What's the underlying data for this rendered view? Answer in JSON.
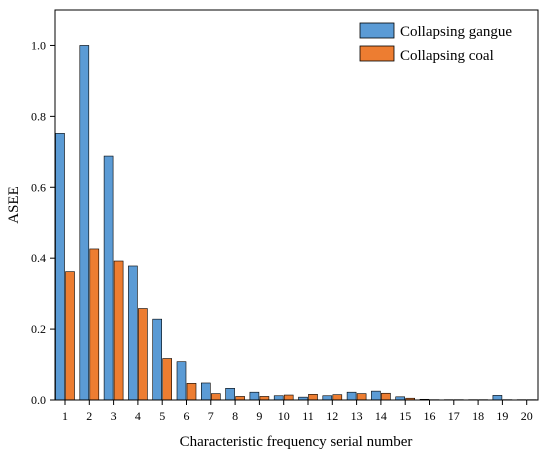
{
  "chart_data": {
    "type": "bar",
    "title": "",
    "xlabel": "Characteristic frequency serial number",
    "ylabel": "ASEE",
    "ylim": [
      0,
      1.1
    ],
    "yticks": [
      "0.0",
      "0.2",
      "0.4",
      "0.6",
      "0.8",
      "1.0"
    ],
    "categories": [
      "1",
      "2",
      "3",
      "4",
      "5",
      "6",
      "7",
      "8",
      "9",
      "10",
      "11",
      "12",
      "13",
      "14",
      "15",
      "16",
      "17",
      "18",
      "19",
      "20"
    ],
    "grid": false,
    "legend_position": "top-right",
    "series": [
      {
        "name": "Collapsing gangue",
        "color": "#5b9bd5",
        "values": [
          0.752,
          1.0,
          0.688,
          0.378,
          0.228,
          0.108,
          0.048,
          0.033,
          0.022,
          0.012,
          0.008,
          0.012,
          0.022,
          0.025,
          0.009,
          0.002,
          0.001,
          0.001,
          0.013,
          0.001
        ]
      },
      {
        "name": "Collapsing coal",
        "color": "#ed7d31",
        "values": [
          0.362,
          0.426,
          0.392,
          0.258,
          0.117,
          0.047,
          0.018,
          0.01,
          0.01,
          0.014,
          0.016,
          0.015,
          0.018,
          0.019,
          0.005,
          0.001,
          0.001,
          0.001,
          0.001,
          0.001
        ]
      }
    ]
  }
}
